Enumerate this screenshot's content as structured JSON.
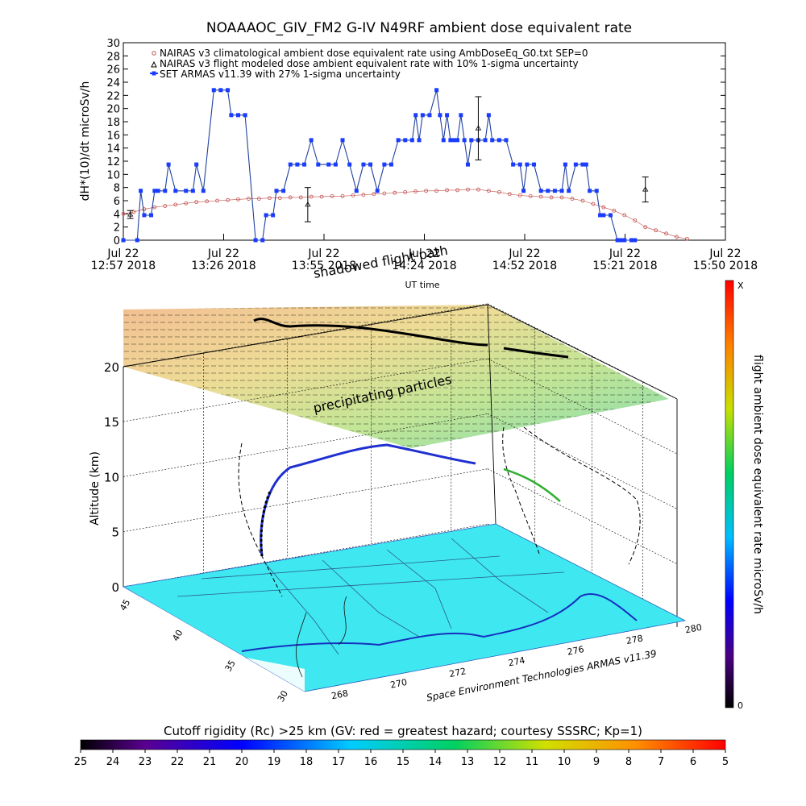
{
  "title": "NOAAAOC_GIV_FM2 G-IV    N49RF   ambient dose equivalent rate",
  "chart_data": [
    {
      "type": "line",
      "ylabel": "dH*(10)/dt microSv/h",
      "xlabel": "UT time",
      "ylim": [
        0,
        30
      ],
      "yticks": [
        0,
        2,
        4,
        6,
        8,
        10,
        12,
        14,
        16,
        18,
        20,
        22,
        24,
        26,
        28,
        30
      ],
      "x_ticks": [
        {
          "top": "Jul 22",
          "bottom": "12:57 2018"
        },
        {
          "top": "Jul 22",
          "bottom": "13:26 2018"
        },
        {
          "top": "Jul 22",
          "bottom": "13:55 2018"
        },
        {
          "top": "Jul 22",
          "bottom": "14:24 2018"
        },
        {
          "top": "Jul 22",
          "bottom": "14:52 2018"
        },
        {
          "top": "Jul 22",
          "bottom": "15:21 2018"
        },
        {
          "top": "Jul 22",
          "bottom": "15:50 2018"
        }
      ],
      "xlim_minutes_after_1257": [
        0,
        173
      ],
      "legend": [
        "NAIRAS v3 climatological ambient dose equivalent rate using AmbDoseEq_G0.txt SEP=0",
        "NAIRAS v3 flight modeled dose ambient equivalent rate with 10% 1-sigma uncertainty",
        "SET ARMAS v11.39 with 27% 1-sigma uncertainty"
      ],
      "colors": {
        "climatological": "#c0504d",
        "armas": "#1a3cff",
        "armas_line": "#2040a0",
        "error_bars": "#000000"
      },
      "series": [
        {
          "name": "NAIRAS v3 climatological ambient dose equivalent rate using AmbDoseEq_G0.txt SEP=0",
          "x": [
            0,
            3,
            6,
            9,
            12,
            15,
            18,
            21,
            24,
            27,
            30,
            33,
            36,
            39,
            42,
            45,
            48,
            51,
            54,
            57,
            60,
            63,
            66,
            69,
            72,
            75,
            78,
            81,
            84,
            87,
            90,
            93,
            96,
            99,
            102,
            105,
            108,
            111,
            114,
            117,
            120,
            123,
            126,
            129,
            132,
            135,
            138,
            141,
            144,
            147,
            150,
            153,
            156,
            159,
            162
          ],
          "y": [
            4.0,
            4.3,
            4.7,
            5.0,
            5.2,
            5.4,
            5.6,
            5.8,
            5.9,
            6.0,
            6.1,
            6.2,
            6.3,
            6.3,
            6.4,
            6.4,
            6.5,
            6.5,
            6.6,
            6.6,
            6.7,
            6.7,
            6.8,
            6.9,
            7.0,
            7.1,
            7.2,
            7.3,
            7.4,
            7.5,
            7.5,
            7.6,
            7.6,
            7.7,
            7.7,
            7.5,
            7.3,
            7.0,
            6.8,
            6.7,
            6.6,
            6.5,
            6.5,
            6.3,
            6.0,
            5.5,
            5.0,
            4.5,
            3.8,
            3.0,
            2.0,
            1.5,
            1.0,
            0.5,
            0.2
          ]
        },
        {
          "name": "SET ARMAS v11.39 with 27% 1-sigma uncertainty",
          "x": [
            0,
            4,
            5,
            6,
            8,
            9,
            10,
            12,
            13,
            15,
            18,
            20,
            21,
            23,
            26,
            28,
            30,
            31,
            33,
            35,
            38,
            40,
            41,
            43,
            44,
            46,
            48,
            50,
            52,
            54,
            56,
            59,
            61,
            63,
            65,
            67,
            69,
            71,
            73,
            75,
            77,
            79,
            81,
            83,
            84,
            85,
            86,
            88,
            90,
            91,
            92,
            93,
            94,
            95,
            96,
            97,
            98,
            99,
            100,
            102,
            104,
            105,
            106,
            108,
            110,
            112,
            114,
            115,
            116,
            118,
            120,
            122,
            124,
            126,
            127,
            128,
            130,
            132,
            133,
            134,
            136,
            137,
            138,
            140,
            142,
            143,
            144,
            146,
            147
          ],
          "y": [
            0,
            0,
            7.5,
            3.8,
            3.8,
            7.5,
            7.5,
            7.5,
            11.5,
            7.5,
            7.5,
            7.5,
            11.5,
            7.5,
            22.8,
            22.8,
            22.8,
            19.0,
            19.0,
            19.0,
            0,
            0,
            3.8,
            3.8,
            7.5,
            7.5,
            11.5,
            11.5,
            11.5,
            15.2,
            11.5,
            11.5,
            11.5,
            15.2,
            11.5,
            7.5,
            11.5,
            11.5,
            7.5,
            11.5,
            11.5,
            15.2,
            15.2,
            15.2,
            19.0,
            15.2,
            19.0,
            19.0,
            22.8,
            19.0,
            15.2,
            19.0,
            15.2,
            15.2,
            15.2,
            19.0,
            15.2,
            11.5,
            15.2,
            15.2,
            15.2,
            19.0,
            15.2,
            15.2,
            15.2,
            11.5,
            11.5,
            7.5,
            11.5,
            11.5,
            7.5,
            7.5,
            7.5,
            7.5,
            11.5,
            7.5,
            11.5,
            11.5,
            11.5,
            7.5,
            7.5,
            3.8,
            3.8,
            3.8,
            0,
            0,
            0,
            0,
            0
          ]
        },
        {
          "name": "NAIRAS v3 flight modeled dose ambient equivalent rate with 10% 1-sigma uncertainty",
          "x": [
            2,
            53,
            102,
            150
          ],
          "y": [
            3.9,
            5.4,
            17.0,
            7.7
          ],
          "err": [
            0.6,
            2.6,
            4.8,
            1.9
          ]
        }
      ]
    },
    {
      "type": "3d",
      "ylabel": "Altitude (km)",
      "zticks": [
        0,
        5,
        10,
        15,
        20
      ],
      "lat_ticks": [
        45,
        40,
        35,
        30
      ],
      "lon_ticks": [
        268,
        270,
        272,
        274,
        276,
        278,
        280
      ],
      "annotations": [
        "shadowed flight path",
        "precipitating particles"
      ],
      "credit": "Space Environment Technologies ARMAS v11.39",
      "colorbar": {
        "title": "flight ambient dose equivalent rate microSv/h",
        "max_label": "X",
        "min_label": "0"
      }
    },
    {
      "type": "colorbar",
      "title": "Cutoff rigidity (Rc) >25 km (GV: red = greatest hazard; courtesy SSSRC; Kp=1)",
      "ticks": [
        25,
        24,
        23,
        22,
        21,
        20,
        19,
        18,
        17,
        16,
        15,
        14,
        13,
        12,
        11,
        10,
        9,
        8,
        7,
        6,
        5
      ]
    }
  ]
}
